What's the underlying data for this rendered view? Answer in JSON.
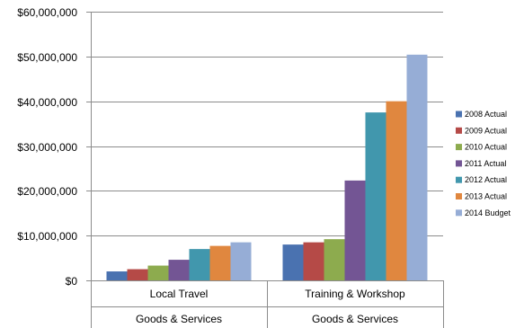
{
  "chart_data": {
    "type": "bar",
    "categories": [
      "Local Travel",
      "Training & Workshop"
    ],
    "group_labels": [
      "Goods & Services",
      "Goods & Services"
    ],
    "ylim": [
      0,
      60000000
    ],
    "yticks": [
      0,
      10000000,
      20000000,
      30000000,
      40000000,
      50000000,
      60000000
    ],
    "ytick_labels": [
      "$0",
      "$10,000,000",
      "$20,000,000",
      "$30,000,000",
      "$40,000,000",
      "$50,000,000",
      "$60,000,000"
    ],
    "grid": true,
    "legend_position": "right",
    "series": [
      {
        "name": "2008 Actual",
        "color": "#4a72b0",
        "values": [
          2000000,
          8000000
        ]
      },
      {
        "name": "2009 Actual",
        "color": "#b54a47",
        "values": [
          2500000,
          8500000
        ]
      },
      {
        "name": "2010 Actual",
        "color": "#8dab4e",
        "values": [
          3300000,
          9200000
        ]
      },
      {
        "name": "2011 Actual",
        "color": "#735594",
        "values": [
          4600000,
          22300000
        ]
      },
      {
        "name": "2012 Actual",
        "color": "#4197ad",
        "values": [
          7000000,
          37500000
        ]
      },
      {
        "name": "2013 Actual",
        "color": "#e0873f",
        "values": [
          7700000,
          40000000
        ]
      },
      {
        "name": "2014 Budget",
        "color": "#96add6",
        "values": [
          8500000,
          50400000
        ]
      }
    ]
  }
}
